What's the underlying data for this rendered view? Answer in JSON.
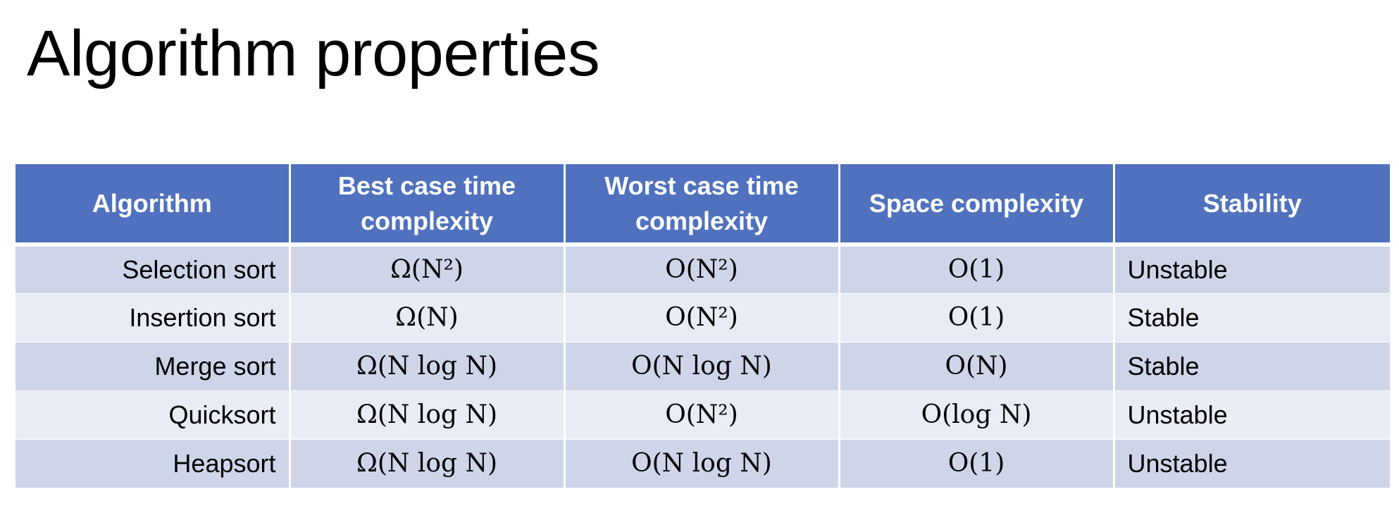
{
  "title": "Algorithm properties",
  "table": {
    "headers": [
      "Algorithm",
      "Best case time complexity",
      "Worst case time complexity",
      "Space complexity",
      "Stability"
    ],
    "rows": [
      [
        "Selection sort",
        "Ω(N²)",
        "O(N²)",
        "O(1)",
        "Unstable"
      ],
      [
        "Insertion sort",
        "Ω(N)",
        "O(N²)",
        "O(1)",
        "Stable"
      ],
      [
        "Merge sort",
        "Ω(N log N)",
        "O(N log N)",
        "O(N)",
        "Stable"
      ],
      [
        "Quicksort",
        "Ω(N log N)",
        "O(N²)",
        "O(log N)",
        "Unstable"
      ],
      [
        "Heapsort",
        "Ω(N log N)",
        "O(N log N)",
        "O(1)",
        "Unstable"
      ]
    ]
  },
  "colors": {
    "header_bg": "#4f71be",
    "row_odd_bg": "#cfd5e9",
    "row_even_bg": "#e9ebf5"
  }
}
